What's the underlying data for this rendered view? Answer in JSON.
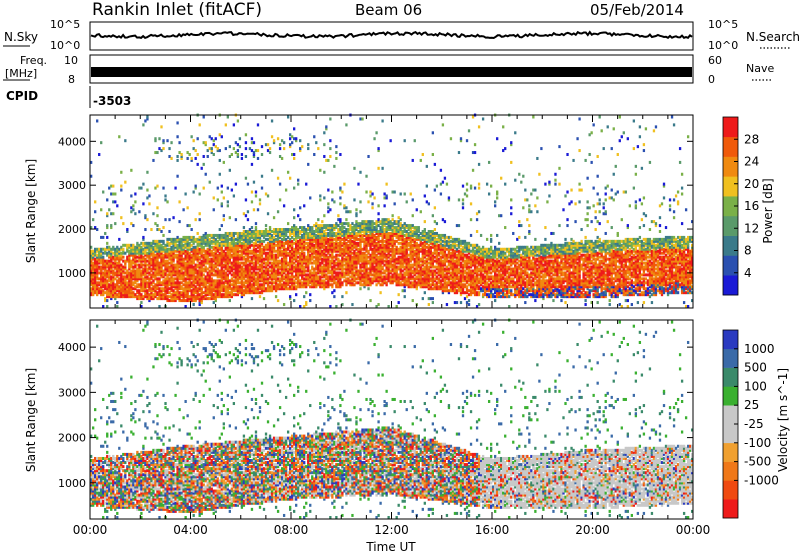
{
  "header": {
    "station": "Rankin Inlet (fitACF)",
    "beam": "Beam 06",
    "date": "05/Feb/2014"
  },
  "noise_panel": {
    "left_label": "N.Sky",
    "left_ticks": [
      "10^5",
      "10^0"
    ],
    "right_label": "N.Search",
    "right_ticks": [
      "10^5",
      "10^0"
    ]
  },
  "freq_panel": {
    "left_label_1": "Freq.",
    "left_label_2": "[MHz]",
    "left_ticks": [
      "10",
      "8"
    ],
    "right_label": "Nave",
    "right_ticks": [
      "60",
      "0"
    ]
  },
  "cpid_panel": {
    "label": "CPID",
    "value": "-3503"
  },
  "colors": {
    "power_scale": [
      "#1a1ad6",
      "#2a50b0",
      "#3a7a8a",
      "#5a9a6a",
      "#7ab048",
      "#f0c020",
      "#f08a10",
      "#f05a0a",
      "#ee1a1a"
    ],
    "velocity_scale": [
      "#ee1a1a",
      "#f04a10",
      "#f07818",
      "#f0a030",
      "#c8c8c8",
      "#c8c8c8",
      "#3ab030",
      "#3a8a6a",
      "#3a6aa8",
      "#2a3ac0"
    ]
  },
  "chart_data": [
    {
      "type": "heatmap",
      "title": "",
      "xlabel": "",
      "ylabel": "Slant Range [km]",
      "y_ticks": [
        "1000",
        "2000",
        "3000",
        "4000"
      ],
      "ylim": [
        200,
        4600
      ],
      "xlim_hours": [
        0,
        24
      ],
      "colorbar": {
        "label": "Power [dB]",
        "ticks": [
          "4",
          "8",
          "12",
          "16",
          "20",
          "24",
          "28"
        ],
        "range": [
          0,
          32
        ]
      },
      "dominant_band": [
        {
          "hour": 0,
          "range_low": 450,
          "range_high": 1500
        },
        {
          "hour": 4,
          "range_low": 300,
          "range_high": 1800
        },
        {
          "hour": 8,
          "range_low": 600,
          "range_high": 2000
        },
        {
          "hour": 12,
          "range_low": 700,
          "range_high": 2200
        },
        {
          "hour": 16,
          "range_low": 400,
          "range_high": 1500
        },
        {
          "hour": 20,
          "range_low": 400,
          "range_high": 1700
        },
        {
          "hour": 24,
          "range_low": 500,
          "range_high": 1800
        }
      ]
    },
    {
      "type": "heatmap",
      "title": "",
      "xlabel": "Time UT",
      "ylabel": "Slant Range [km]",
      "x_ticks": [
        "00:00",
        "04:00",
        "08:00",
        "12:00",
        "16:00",
        "20:00",
        "00:00"
      ],
      "y_ticks": [
        "1000",
        "2000",
        "3000",
        "4000"
      ],
      "ylim": [
        200,
        4600
      ],
      "xlim_hours": [
        0,
        24
      ],
      "colorbar": {
        "label": "Velocity [m s^-1]",
        "ticks": [
          "1000",
          "500",
          "100",
          "25",
          "-25",
          "-100",
          "-500",
          "-1000"
        ]
      }
    }
  ]
}
